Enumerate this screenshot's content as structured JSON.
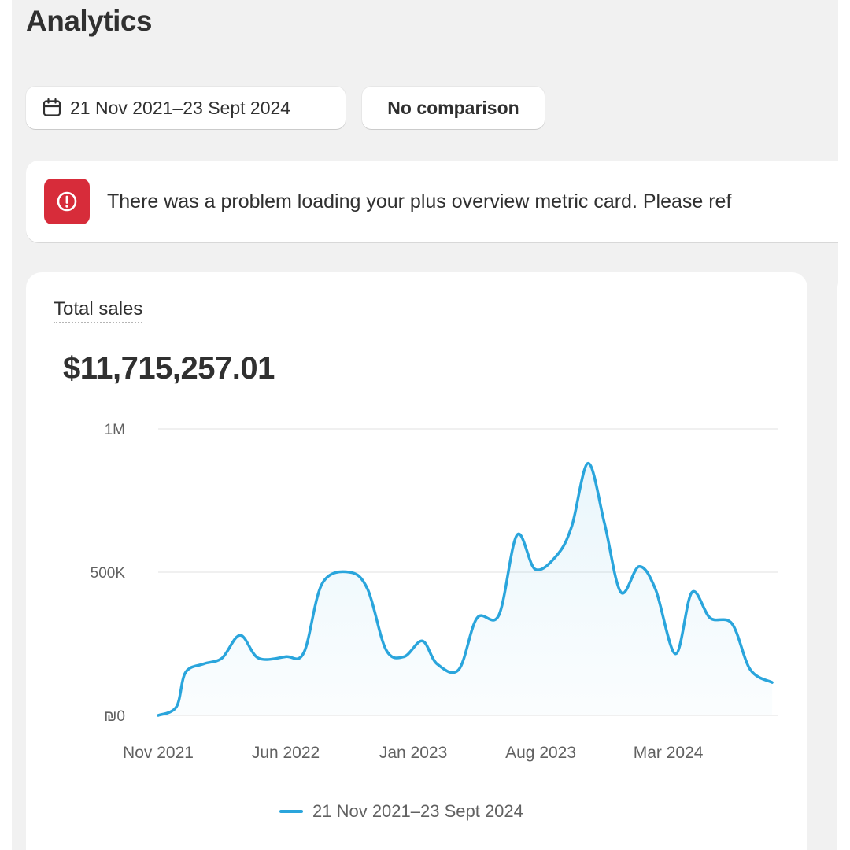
{
  "page": {
    "title": "Analytics"
  },
  "filters": {
    "date_range": "21 Nov 2021–23 Sept 2024",
    "comparison": "No comparison"
  },
  "error_banner": {
    "message": "There was a problem loading your plus overview metric card. Please ref"
  },
  "card": {
    "metric_label": "Total sales",
    "metric_value": "$11,715,257.01"
  },
  "colors": {
    "line": "#2aa5dc",
    "error": "#d72c3a"
  },
  "chart_data": {
    "type": "area",
    "ylim": [
      0,
      1000000
    ],
    "y_ticks": [
      {
        "value": 0,
        "label": "₪0"
      },
      {
        "value": 500000,
        "label": "500K"
      },
      {
        "value": 1000000,
        "label": "1M"
      }
    ],
    "x_ticks": [
      {
        "x": 0,
        "label": "Nov 2021"
      },
      {
        "x": 7,
        "label": "Jun 2022"
      },
      {
        "x": 14,
        "label": "Jan 2023"
      },
      {
        "x": 21,
        "label": "Aug 2023"
      },
      {
        "x": 28,
        "label": "Mar 2024"
      }
    ],
    "x_max": 34,
    "grid": true,
    "series": [
      {
        "name": "21 Nov 2021–23 Sept 2024",
        "values": [
          [
            0,
            0
          ],
          [
            1,
            30000
          ],
          [
            1.5,
            150000
          ],
          [
            2.5,
            180000
          ],
          [
            3.5,
            200000
          ],
          [
            4.5,
            280000
          ],
          [
            5.5,
            200000
          ],
          [
            7,
            205000
          ],
          [
            8,
            220000
          ],
          [
            9,
            460000
          ],
          [
            10.5,
            500000
          ],
          [
            11.5,
            440000
          ],
          [
            12.5,
            230000
          ],
          [
            13.5,
            205000
          ],
          [
            14.5,
            260000
          ],
          [
            15.3,
            180000
          ],
          [
            16.5,
            160000
          ],
          [
            17.5,
            340000
          ],
          [
            18.7,
            350000
          ],
          [
            19.7,
            630000
          ],
          [
            20.7,
            510000
          ],
          [
            21.9,
            560000
          ],
          [
            22.7,
            660000
          ],
          [
            23.6,
            880000
          ],
          [
            24.5,
            670000
          ],
          [
            25.4,
            430000
          ],
          [
            26.4,
            520000
          ],
          [
            27.3,
            440000
          ],
          [
            28.4,
            215000
          ],
          [
            29.3,
            430000
          ],
          [
            30.3,
            340000
          ],
          [
            31.5,
            320000
          ],
          [
            32.5,
            160000
          ],
          [
            33.7,
            115000
          ]
        ]
      }
    ]
  }
}
